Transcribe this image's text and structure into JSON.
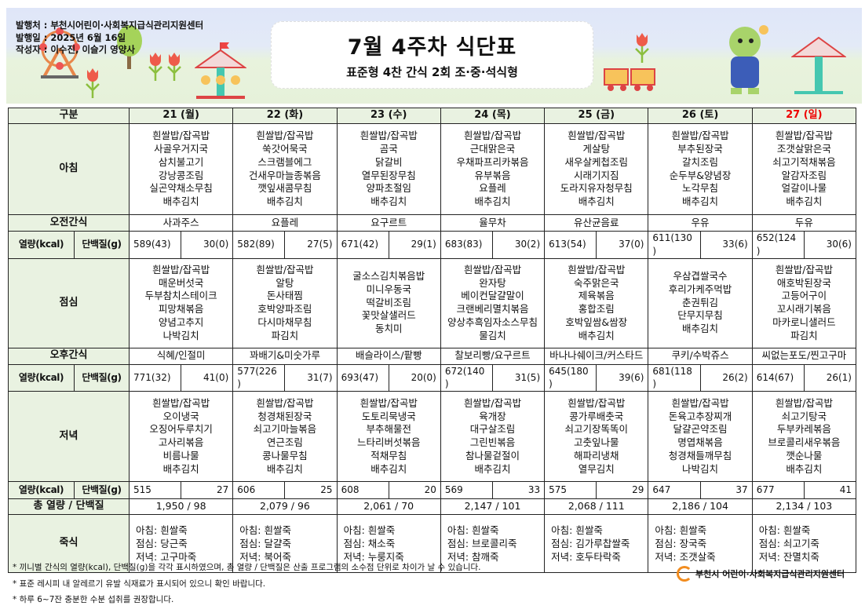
{
  "publisher": {
    "issuer": "발행처 : 부천시어린이·사회복지급식관리지원센터",
    "date": "발행일 : 2025년 6월 16일",
    "author": "작성자 : 이수진, 이슬기 영양사"
  },
  "title": "7월 4주차 식단표",
  "subtitle": "표준형 4찬 간식 2회 조·중·석식형",
  "labels": {
    "category": "구분",
    "breakfast": "아침",
    "am_snack": "오전간식",
    "kcal": "열량(kcal)",
    "protein": "단백질(g)",
    "lunch": "점심",
    "pm_snack": "오후간식",
    "dinner": "저녁",
    "total": "총 열량 / 단백질",
    "porridge": "죽식"
  },
  "colors": {
    "header_bg": "#e9f2e1",
    "sunday": "#e00000",
    "logo": "#f28c1e"
  },
  "days": [
    {
      "date": "21 (월)",
      "breakfast": [
        "흰쌀밥/잡곡밥",
        "사골우거지국",
        "삼치불고기",
        "강낭콩조림",
        "실곤약채소무침",
        "배추김치"
      ],
      "am_snack": "사과주스",
      "am_kcal": "589(43)",
      "am_protein": "30(0)",
      "lunch": [
        "흰쌀밥/잡곡밥",
        "매운버섯국",
        "두부참치스테이크",
        "피망채볶음",
        "양념고추지",
        "나박김치"
      ],
      "pm_snack": "식혜/인절미",
      "pm_kcal": "771(32)",
      "pm_protein": "41(0)",
      "dinner": [
        "흰쌀밥/잡곡밥",
        "오이냉국",
        "오징어두루치기",
        "고사리볶음",
        "비름나물",
        "배추김치"
      ],
      "dn_kcal": "515",
      "dn_protein": "27",
      "total": "1,950 / 98",
      "porridge": [
        "아침: 흰쌀죽",
        "점심: 당근죽",
        "저녁: 고구마죽"
      ]
    },
    {
      "date": "22 (화)",
      "breakfast": [
        "흰쌀밥/잡곡밥",
        "쑥갓어묵국",
        "스크램블에그",
        "건새우마늘종볶음",
        "깻잎새콤무침",
        "배추김치"
      ],
      "am_snack": "요플레",
      "am_kcal": "582(89)",
      "am_protein": "27(5)",
      "lunch": [
        "흰쌀밥/잡곡밥",
        "알탕",
        "돈사태찜",
        "호박양파조림",
        "다시마채무침",
        "파김치"
      ],
      "pm_snack": "꽈배기&미숫가루",
      "pm_kcal": "577(226)",
      "pm_protein": "31(7)",
      "dinner": [
        "흰쌀밥/잡곡밥",
        "청경채된장국",
        "쇠고기마늘볶음",
        "연근조림",
        "콩나물무침",
        "배추김치"
      ],
      "dn_kcal": "606",
      "dn_protein": "25",
      "total": "2,079 / 96",
      "porridge": [
        "아침: 흰쌀죽",
        "점심: 달걀죽",
        "저녁: 북어죽"
      ]
    },
    {
      "date": "23 (수)",
      "breakfast": [
        "흰쌀밥/잡곡밥",
        "곰국",
        "닭갈비",
        "열무된장무침",
        "양파초절임",
        "배추김치"
      ],
      "am_snack": "요구르트",
      "am_kcal": "671(42)",
      "am_protein": "29(1)",
      "lunch": [
        "굴소스김치볶음밥",
        "미니우동국",
        "떡갈비조림",
        "꽃맛살샐러드",
        "동치미"
      ],
      "pm_snack": "배슬라이스/팥빵",
      "pm_kcal": "693(47)",
      "pm_protein": "20(0)",
      "dinner": [
        "흰쌀밥/잡곡밥",
        "도토리묵냉국",
        "부추해물전",
        "느타리버섯볶음",
        "적채무침",
        "배추김치"
      ],
      "dn_kcal": "608",
      "dn_protein": "20",
      "total": "2,061 / 70",
      "porridge": [
        "아침: 흰쌀죽",
        "점심: 채소죽",
        "저녁: 누룽지죽"
      ]
    },
    {
      "date": "24 (목)",
      "breakfast": [
        "흰쌀밥/잡곡밥",
        "근대맑은국",
        "우채파프리카볶음",
        "유부볶음",
        "요플레",
        "배추김치"
      ],
      "am_snack": "율무차",
      "am_kcal": "683(83)",
      "am_protein": "30(2)",
      "lunch": [
        "흰쌀밥/잡곡밥",
        "완자탕",
        "베이컨달걀말이",
        "크랜베리멸치볶음",
        "양상추흑임자소스무침",
        "물김치"
      ],
      "pm_snack": "찰보리빵/요구르트",
      "pm_kcal": "672(140)",
      "pm_protein": "31(5)",
      "dinner": [
        "흰쌀밥/잡곡밥",
        "육개장",
        "대구살조림",
        "그린빈볶음",
        "참나물겉절이",
        "배추김치"
      ],
      "dn_kcal": "569",
      "dn_protein": "33",
      "total": "2,147 / 101",
      "porridge": [
        "아침: 흰쌀죽",
        "점심: 브로콜리죽",
        "저녁: 참깨죽"
      ]
    },
    {
      "date": "25 (금)",
      "breakfast": [
        "흰쌀밥/잡곡밥",
        "게살탕",
        "새우살케첩조림",
        "시래기지짐",
        "도라지유자청무침",
        "배추김치"
      ],
      "am_snack": "유산균음료",
      "am_kcal": "613(54)",
      "am_protein": "37(0)",
      "lunch": [
        "흰쌀밥/잡곡밥",
        "숙주맑은국",
        "제육볶음",
        "홍합조림",
        "호박잎쌈&쌈장",
        "배추김치"
      ],
      "pm_snack": "바나나쉐이크/커스타드",
      "pm_kcal": "645(180)",
      "pm_protein": "39(6)",
      "dinner": [
        "흰쌀밥/잡곡밥",
        "콩가루배춧국",
        "쇠고기장똑똑이",
        "고춧잎나물",
        "해파리냉채",
        "열무김치"
      ],
      "dn_kcal": "575",
      "dn_protein": "29",
      "total": "2,068 / 111",
      "porridge": [
        "아침: 흰쌀죽",
        "점심: 김가루찹쌀죽",
        "저녁: 호두타락죽"
      ]
    },
    {
      "date": "26 (토)",
      "breakfast": [
        "흰쌀밥/잡곡밥",
        "부추된장국",
        "갈치조림",
        "순두부&양념장",
        "노각무침",
        "배추김치"
      ],
      "am_snack": "우유",
      "am_kcal": "611(130)",
      "am_protein": "33(6)",
      "lunch": [
        "우삼겹쌀국수",
        "후리가케주먹밥",
        "춘권튀김",
        "단무지무침",
        "배추김치"
      ],
      "pm_snack": "쿠키/수박쥬스",
      "pm_kcal": "681(118)",
      "pm_protein": "26(2)",
      "dinner": [
        "흰쌀밥/잡곡밥",
        "돈육고추장찌개",
        "달걀곤약조림",
        "명엽채볶음",
        "청경채들깨무침",
        "나박김치"
      ],
      "dn_kcal": "647",
      "dn_protein": "37",
      "total": "2,186 / 104",
      "porridge": [
        "아침: 흰쌀죽",
        "점심: 장국죽",
        "저녁: 조갯살죽"
      ]
    },
    {
      "date": "27 (일)",
      "sunday": true,
      "breakfast": [
        "흰쌀밥/잡곡밥",
        "조갯살맑은국",
        "쇠고기적채볶음",
        "알감자조림",
        "얼갈이나물",
        "배추김치"
      ],
      "am_snack": "두유",
      "am_kcal": "652(124)",
      "am_protein": "30(6)",
      "lunch": [
        "흰쌀밥/잡곡밥",
        "애호박된장국",
        "고등어구이",
        "꼬시래기볶음",
        "마카로니샐러드",
        "파김치"
      ],
      "pm_snack": "씨없는포도/찐고구마",
      "pm_kcal": "614(67)",
      "pm_protein": "26(1)",
      "dinner": [
        "흰쌀밥/잡곡밥",
        "쇠고기탕국",
        "두부카레볶음",
        "브로콜리새우볶음",
        "깻순나물",
        "배추김치"
      ],
      "dn_kcal": "677",
      "dn_protein": "41",
      "total": "2,134 / 103",
      "porridge": [
        "아침: 흰쌀죽",
        "점심: 쇠고기죽",
        "저녁: 잔멸치죽"
      ]
    }
  ],
  "notes": [
    "* 끼니별 간식의 열량(kcal), 단백질(g)을 각각 표시하였으며, 총 열량 / 단백질은 산출 프로그램의 소수점 단위로 차이가 날 수 있습니다.",
    "* 표준 레시피 내 알레르기 유발 식재료가 표시되어 있으니 확인 바랍니다.",
    "* 하루 6~7잔 충분한 수분 섭취를 권장합니다."
  ],
  "logo_text": "부천시 어린이·사회복지급식관리지원센터"
}
